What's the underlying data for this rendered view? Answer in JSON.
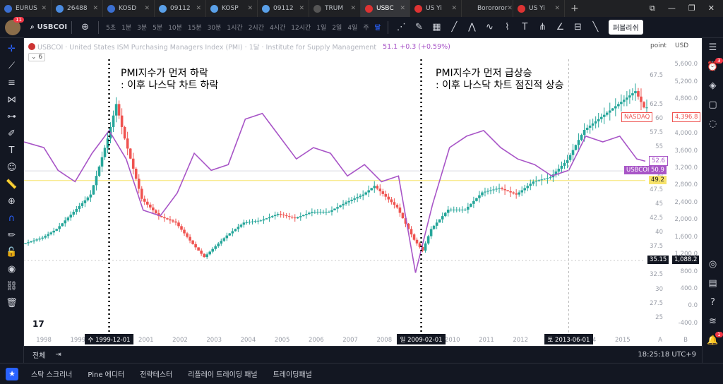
{
  "tabs": [
    {
      "label": "EURUS",
      "color": "#3b6fd1"
    },
    {
      "label": "26488",
      "color": "#4a8be0"
    },
    {
      "label": "KOSD",
      "color": "#3b6fd1"
    },
    {
      "label": "09112",
      "color": "#5aa0e8"
    },
    {
      "label": "KOSP",
      "color": "#5aa0e8"
    },
    {
      "label": "09112",
      "color": "#5aa0e8"
    },
    {
      "label": "TRUM",
      "color": "#555555"
    },
    {
      "label": "USBC",
      "color": "#d33",
      "active": true
    },
    {
      "label": "US Yi",
      "color": "#d33"
    },
    {
      "label": "Borororor",
      "color": "#202124"
    },
    {
      "label": "US Yi",
      "color": "#d33"
    }
  ],
  "toolbar": {
    "avatar_badge": "11",
    "symbol": "USBCOI",
    "timeframes": [
      "5초",
      "1분",
      "3분",
      "5분",
      "10분",
      "15분",
      "30분",
      "1시간",
      "2시간",
      "4시간",
      "12시간",
      "1일",
      "2일",
      "4일",
      "주",
      "달"
    ],
    "active_timeframe": "달",
    "publish_label": "퍼블리쉬"
  },
  "legend": {
    "title": "USBCOI · United States ISM Purchasing Managers Index (PMI) · 1달 · Institute for Supply Management",
    "value": "51.1 +0.3 (+0.59%)",
    "count": "6"
  },
  "annotations": {
    "left_line1": "PMI지수가 먼저 하락",
    "left_line2": ": 이후 나스닥 차트 하락",
    "right_line1": "PMI지수가 먼저 급상승",
    "right_line2": ": 이후 나스닥 차트 점진적 상승"
  },
  "scales": {
    "left_mode": "point",
    "currency": "USD"
  },
  "chart_data": {
    "type": "line",
    "x_range": [
      "1997-06",
      "2015-09"
    ],
    "series": [
      {
        "name": "USBCOI",
        "axis": "left",
        "ylim": [
          22.5,
          72.5
        ],
        "x": [
          "1997-06",
          "1998-01",
          "1998-06",
          "1998-12",
          "1999-06",
          "1999-12",
          "2000-06",
          "2000-12",
          "2001-06",
          "2001-12",
          "2002-06",
          "2002-12",
          "2003-06",
          "2003-12",
          "2004-06",
          "2004-12",
          "2005-06",
          "2005-12",
          "2006-06",
          "2006-12",
          "2007-06",
          "2007-12",
          "2008-06",
          "2008-12",
          "2009-06",
          "2009-12",
          "2010-06",
          "2010-12",
          "2011-06",
          "2011-12",
          "2012-06",
          "2012-12",
          "2013-06",
          "2013-12",
          "2014-06",
          "2014-12",
          "2015-06",
          "2015-09"
        ],
        "values": [
          56.0,
          55.0,
          51.0,
          49.0,
          54.0,
          58.0,
          53.0,
          44.0,
          43.0,
          47.0,
          54.0,
          51.0,
          52.0,
          60.0,
          61.0,
          57.0,
          53.0,
          55.0,
          54.0,
          50.0,
          52.0,
          49.0,
          50.0,
          33.0,
          45.0,
          55.0,
          57.0,
          58.0,
          55.0,
          53.0,
          52.0,
          50.0,
          51.0,
          57.0,
          56.0,
          57.0,
          53.0,
          52.6
        ]
      },
      {
        "name": "NASDAQ",
        "axis": "right",
        "ylim": [
          -600,
          6000
        ],
        "x": [
          "1997-06",
          "1998-01",
          "1998-06",
          "1998-12",
          "1999-06",
          "1999-12",
          "2000-03",
          "2000-06",
          "2000-12",
          "2001-06",
          "2001-12",
          "2002-06",
          "2002-10",
          "2003-06",
          "2003-12",
          "2004-06",
          "2004-12",
          "2005-06",
          "2005-12",
          "2006-06",
          "2006-12",
          "2007-06",
          "2007-10",
          "2008-06",
          "2008-12",
          "2009-03",
          "2009-06",
          "2009-12",
          "2010-06",
          "2010-12",
          "2011-06",
          "2011-12",
          "2012-06",
          "2012-12",
          "2013-06",
          "2013-12",
          "2014-06",
          "2014-12",
          "2015-06",
          "2015-09"
        ],
        "values": [
          1450,
          1600,
          1800,
          2200,
          2600,
          3900,
          4700,
          3900,
          2500,
          2100,
          1950,
          1450,
          1150,
          1650,
          1950,
          2000,
          2150,
          2050,
          2200,
          2200,
          2420,
          2600,
          2800,
          2300,
          1550,
          1300,
          1800,
          2250,
          2250,
          2650,
          2750,
          2600,
          2900,
          3000,
          3400,
          4100,
          4400,
          4700,
          5000,
          4620
        ]
      }
    ],
    "left_ticks": [
      "67.5",
      "62.5",
      "60",
      "57.5",
      "55",
      "52.5",
      "50",
      "47.5",
      "45",
      "42.5",
      "40",
      "37.5",
      "35",
      "32.5",
      "30",
      "27.5",
      "25"
    ],
    "right_ticks": [
      "5,600.0",
      "5,200.0",
      "4,800.0",
      "4,400.0",
      "4,000.0",
      "3,600.0",
      "3,200.0",
      "2,800.0",
      "2,400.0",
      "2,000.0",
      "1,600.0",
      "1,200.0",
      "800.0",
      "400.0",
      "0.0",
      "-400.0"
    ],
    "x_ticks": [
      "1998",
      "1999",
      "2000",
      "2001",
      "2002",
      "2003",
      "2004",
      "2005",
      "2006",
      "2007",
      "2008",
      "2009",
      "2010",
      "2011",
      "2012",
      "2013",
      "2014",
      "2015"
    ],
    "markers": [
      {
        "date": "1999-12-01",
        "label": "수 1999-12-01",
        "style": "dotted"
      },
      {
        "date": "2009-02-01",
        "label": "일 2009-02-01",
        "style": "dotted"
      },
      {
        "date": "2013-06-01",
        "label": "토 2013-06-01",
        "style": "dashed"
      }
    ],
    "price_tags": [
      {
        "text": "NASDAQ",
        "kind": "outline",
        "side": "left"
      },
      {
        "text": "4,396.8",
        "kind": "outline",
        "side": "right",
        "value": 4396.8
      },
      {
        "text": "52.6",
        "kind": "outline",
        "side": "left",
        "value": 52.6
      },
      {
        "text": "USBCOI",
        "kind": "filled",
        "side": "left"
      },
      {
        "text": "50.9",
        "kind": "filled",
        "side": "left",
        "value": 50.9
      },
      {
        "text": "49.2",
        "kind": "yellow",
        "side": "left",
        "value": 49.2
      },
      {
        "text": "35.15",
        "kind": "dark",
        "side": "left",
        "value": 35.15
      },
      {
        "text": "1,088.2",
        "kind": "dark",
        "side": "right",
        "value": 1088.2
      }
    ],
    "colors": {
      "pmi": "#a855c7",
      "up": "#26a69a",
      "down": "#ef5350",
      "yellow_line": "#f7e36b"
    }
  },
  "bottom": {
    "range_label": "전체",
    "clock": "18:25:18 UTC+9",
    "right_a": "A",
    "right_b": "B"
  },
  "panel": {
    "items": [
      "스탁 스크리너",
      "Pine 에디터",
      "전략테스터",
      "리플레이 트레이딩 패널",
      "트레이딩패널"
    ]
  }
}
